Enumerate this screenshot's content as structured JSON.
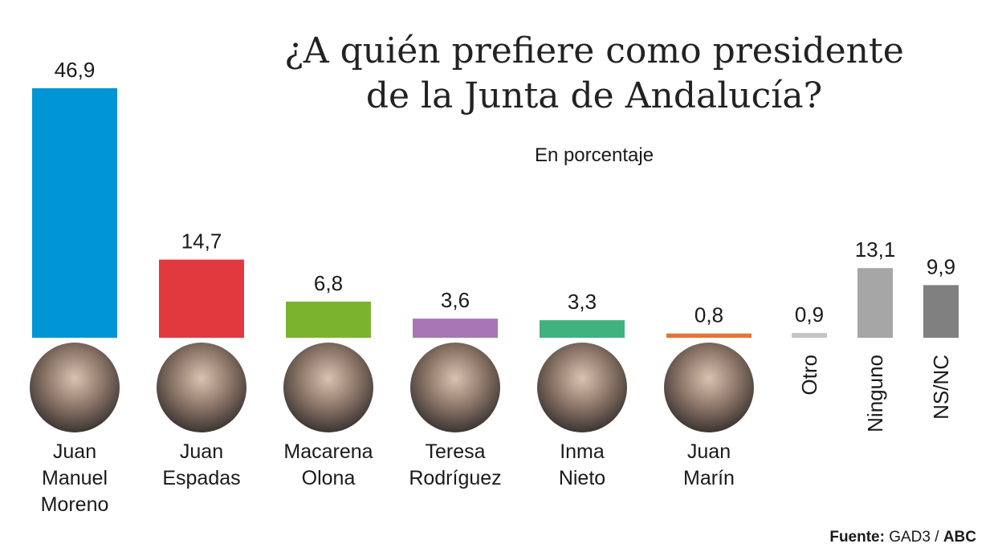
{
  "chart_data": {
    "type": "bar",
    "title": "¿A quién prefiere como presidente de la Junta de Andalucía?",
    "title_lines": [
      "¿A quién prefiere como presidente",
      "de la Junta de Andalucía?"
    ],
    "subtitle": "En porcentaje",
    "ylim": [
      0,
      46.9
    ],
    "categories": [
      "Juan Manuel Moreno",
      "Juan Espadas",
      "Macarena Olona",
      "Teresa Rodríguez",
      "Inma Nieto",
      "Juan Marín",
      "Otro",
      "Ninguno",
      "NS/NC"
    ],
    "name_lines": [
      [
        "Juan",
        "Manuel",
        "Moreno"
      ],
      [
        "Juan",
        "Espadas"
      ],
      [
        "Macarena",
        "Olona"
      ],
      [
        "Teresa",
        "Rodríguez"
      ],
      [
        "Inma",
        "Nieto"
      ],
      [
        "Juan",
        "Marín"
      ]
    ],
    "values": [
      46.9,
      14.7,
      6.8,
      3.6,
      3.3,
      0.8,
      0.9,
      13.1,
      9.9
    ],
    "value_labels": [
      "46,9",
      "14,7",
      "6,8",
      "3,6",
      "3,3",
      "0,8",
      "0,9",
      "13,1",
      "9,9"
    ],
    "colors": [
      "#0095d5",
      "#e2393f",
      "#7ab42e",
      "#a875b5",
      "#3fb27f",
      "#e8733a",
      "#c4c4c4",
      "#a6a6a6",
      "#808080"
    ]
  },
  "source": {
    "label": "Fuente:",
    "text": "GAD3 /",
    "brand": "ABC"
  }
}
